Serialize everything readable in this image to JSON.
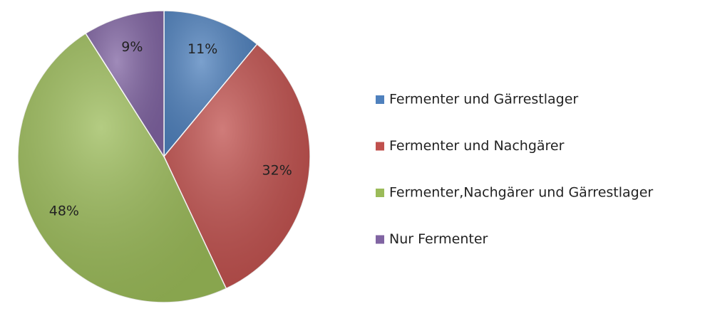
{
  "chart_data": {
    "type": "pie",
    "categories": [
      "Fermenter und Gärrestlager",
      "Fermenter und Nachgärer",
      "Fermenter,Nachgärer und Gärrestlager",
      "Nur Fermenter"
    ],
    "values": [
      11,
      32,
      48,
      9
    ],
    "value_labels": [
      "11%",
      "32%",
      "48%",
      "9%"
    ],
    "colors": [
      "#4f81bd",
      "#c0504d",
      "#9bbb59",
      "#8064a2"
    ],
    "legend": "right"
  }
}
